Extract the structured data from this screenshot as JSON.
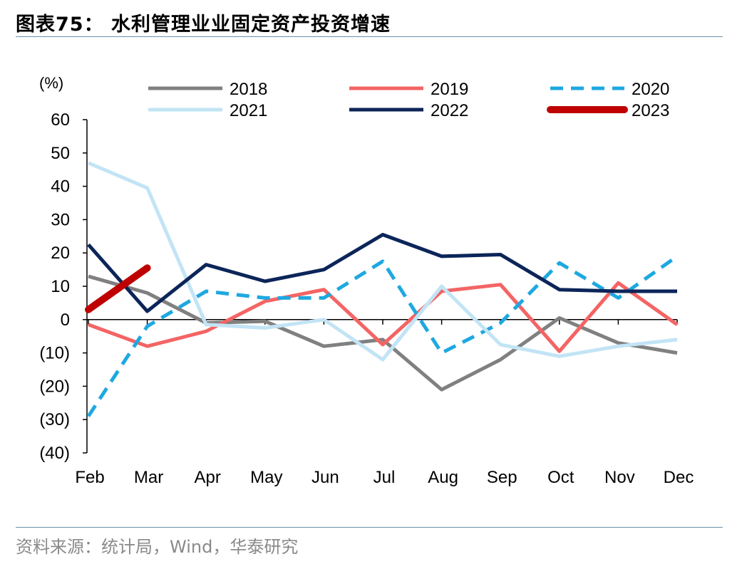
{
  "figure": {
    "title": "图表75： 水利管理业业固定资产投资增速",
    "source": "资料来源：统计局，Wind，华泰研究"
  },
  "chart_data": {
    "type": "line",
    "unit_label": "(%)",
    "categories": [
      "Feb",
      "Mar",
      "Apr",
      "May",
      "Jun",
      "Jul",
      "Aug",
      "Sep",
      "Oct",
      "Nov",
      "Dec"
    ],
    "ylim": [
      -40,
      60
    ],
    "yticks": [
      60,
      50,
      40,
      30,
      20,
      10,
      0,
      -10,
      -20,
      -30,
      -40
    ],
    "ytick_labels": [
      "60",
      "50",
      "40",
      "30",
      "20",
      "10",
      "0",
      "(10)",
      "(20)",
      "(30)",
      "(40)"
    ],
    "grid": false,
    "legend_position": "top",
    "series": [
      {
        "name": "2018",
        "color": "#808080",
        "style": "solid",
        "width": 5,
        "values": [
          13,
          8,
          -1,
          -0.5,
          -8,
          -6,
          -21,
          -12,
          0.5,
          -7,
          -10
        ]
      },
      {
        "name": "2019",
        "color": "#f46464",
        "style": "solid",
        "width": 5,
        "values": [
          -1.5,
          -8,
          -3.5,
          5.5,
          9,
          -7.5,
          8.5,
          10.5,
          -9.5,
          11,
          -1.5
        ]
      },
      {
        "name": "2020",
        "color": "#1ea8e0",
        "style": "dashed",
        "width": 5,
        "values": [
          -29,
          -2,
          8.5,
          6.5,
          6.5,
          17.5,
          -10,
          -1,
          17,
          6.5,
          19
        ]
      },
      {
        "name": "2021",
        "color": "#c2e4f5",
        "style": "solid",
        "width": 5,
        "values": [
          47,
          39.5,
          -1.5,
          -2.5,
          0,
          -12,
          10,
          -7.5,
          -11,
          -8,
          -6
        ]
      },
      {
        "name": "2022",
        "color": "#0c2559",
        "style": "solid",
        "width": 5,
        "values": [
          22.5,
          2.5,
          16.5,
          11.5,
          15,
          25.5,
          19,
          19.5,
          9,
          8.5,
          8.5
        ]
      },
      {
        "name": "2023",
        "color": "#bf0000",
        "style": "solid",
        "width": 10,
        "values": [
          3,
          15.5,
          null,
          null,
          null,
          null,
          null,
          null,
          null,
          null,
          null
        ]
      }
    ]
  }
}
